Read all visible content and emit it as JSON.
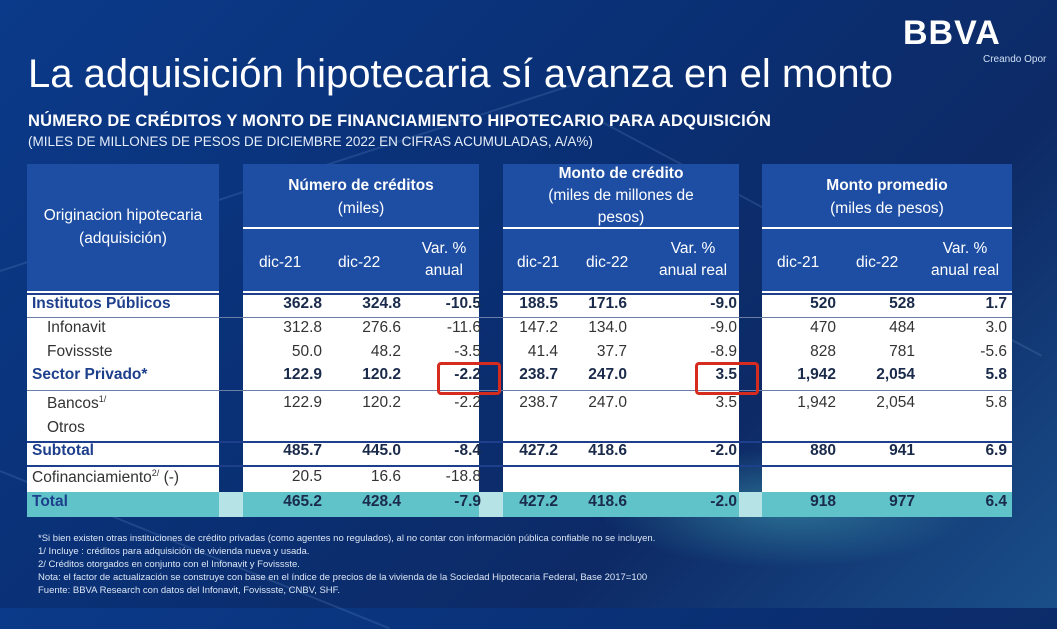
{
  "brand": {
    "logo": "BBVA",
    "tagline": "Creando Opor"
  },
  "title": "La adquisición hipotecaria sí avanza en el monto",
  "subtitle": "NÚMERO DE CRÉDITOS Y MONTO DE FINANCIAMIENTO HIPOTECARIO PARA ADQUISICIÓN",
  "subtitle2": "(MILES DE MILLONES DE PESOS DE DICIEMBRE 2022 EN CIFRAS ACUMULADAS,  A/A%)",
  "table": {
    "row_header_line1": "Originacion hipotecaria",
    "row_header_line2": "(adquisición)",
    "groups": [
      {
        "line1": "Número de créditos",
        "line2": "(miles)",
        "cols": [
          "dic-21",
          "dic-22",
          "Var. %",
          "anual"
        ]
      },
      {
        "line1": "Monto de crédito",
        "line2": "(miles de millones de",
        "line3": "pesos)",
        "cols": [
          "dic-21",
          "dic-22",
          "Var. %",
          "anual real"
        ]
      },
      {
        "line1": "Monto promedio",
        "line2": "(miles de pesos)",
        "cols": [
          "dic-21",
          "dic-22",
          "Var. %",
          "anual real"
        ]
      }
    ],
    "rows": [
      {
        "label": "Institutos Públicos",
        "values": [
          "362.8",
          "324.8",
          "-10.5",
          "188.5",
          "171.6",
          "-9.0",
          "520",
          "528",
          "1.7"
        ]
      },
      {
        "label": "Infonavit",
        "values": [
          "312.8",
          "276.6",
          "-11.6",
          "147.2",
          "134.0",
          "-9.0",
          "470",
          "484",
          "3.0"
        ]
      },
      {
        "label": "Fovissste",
        "values": [
          "50.0",
          "48.2",
          "-3.5",
          "41.4",
          "37.7",
          "-8.9",
          "828",
          "781",
          "-5.6"
        ]
      },
      {
        "label": "Sector Privado*",
        "values": [
          "122.9",
          "120.2",
          "-2.2",
          "238.7",
          "247.0",
          "3.5",
          "1,942",
          "2,054",
          "5.8"
        ]
      },
      {
        "label": "Bancos",
        "sup": "1/",
        "values": [
          "122.9",
          "120.2",
          "-2.2",
          "238.7",
          "247.0",
          "3.5",
          "1,942",
          "2,054",
          "5.8"
        ]
      },
      {
        "label": "Otros",
        "values": [
          "",
          "",
          "",
          "",
          "",
          "",
          "",
          "",
          ""
        ]
      },
      {
        "label": "Subtotal",
        "values": [
          "485.7",
          "445.0",
          "-8.4",
          "427.2",
          "418.6",
          "-2.0",
          "880",
          "941",
          "6.9"
        ]
      },
      {
        "label": "Cofinanciamiento",
        "sup": "2/",
        "suffix": " (-)",
        "values": [
          "20.5",
          "16.6",
          "-18.8",
          "",
          "",
          "",
          "",
          "",
          ""
        ]
      },
      {
        "label": "Total",
        "values": [
          "465.2",
          "428.4",
          "-7.9",
          "427.2",
          "418.6",
          "-2.0",
          "918",
          "977",
          "6.4"
        ]
      }
    ]
  },
  "footnotes": [
    "*Si bien existen otras instituciones de crédito privadas (como agentes no regulados), al no contar con información pública confiable no se incluyen.",
    "1/ Incluye : créditos para adquisición de vivienda nueva y usada.",
    "2/ Créditos otorgados en conjunto con el Infonavit y Fovissste.",
    "Nota: el factor de actualización se construye con base en el índice de precios de la vivienda de la Sociedad Hipotecaria Federal, Base 2017=100",
    "Fuente: BBVA Research con datos del Infonavit, Fovissste, CNBV, SHF."
  ],
  "colors": {
    "header": "#1d4ea3",
    "total_band": "#5fc3c9",
    "highlight": "#d62b1f"
  }
}
